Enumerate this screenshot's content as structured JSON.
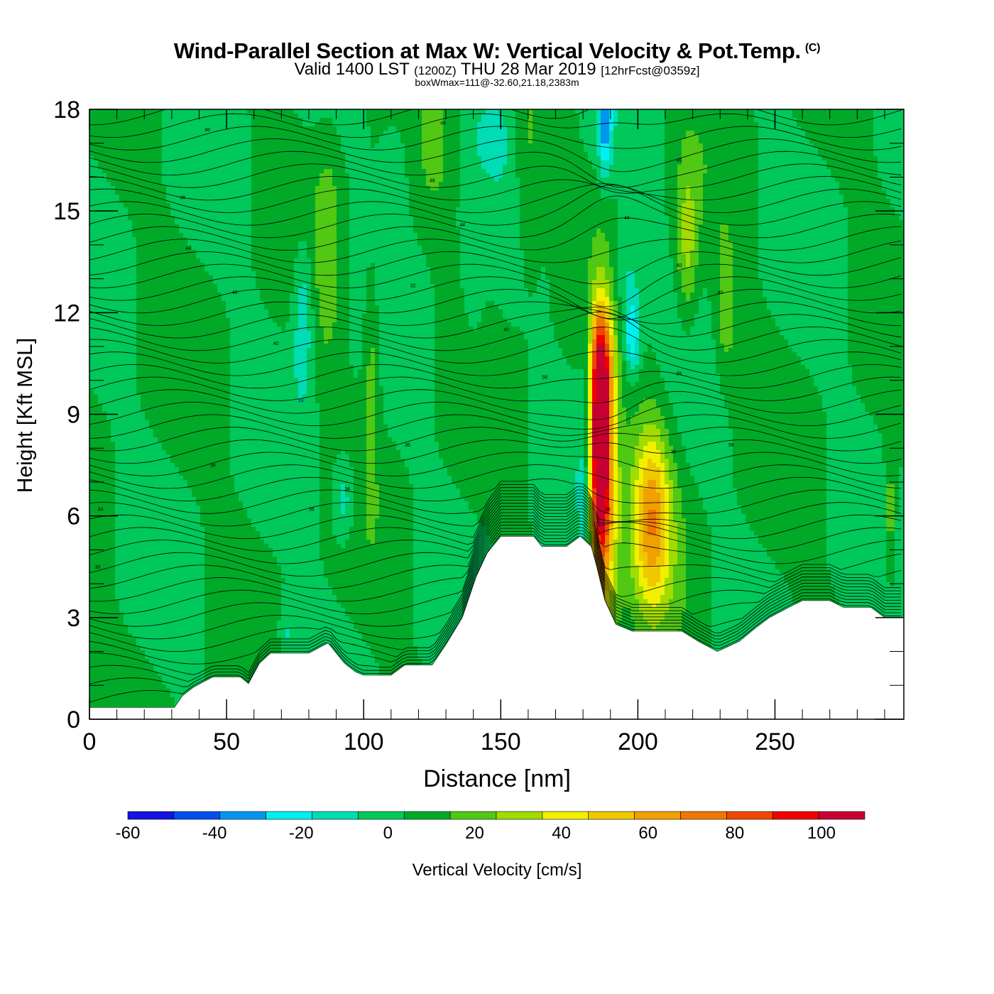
{
  "title": "Wind-Parallel Section at Max W: Vertical Velocity & Pot.Temp.",
  "title_mark": "(C)",
  "subtitle": {
    "valid": "Valid 1400 LST",
    "utc": "(1200Z)",
    "date": "THU 28 Mar 2019",
    "forecast": "[12hrFcst@0359z]"
  },
  "note": "boxWmax=111@-32.60,21.18,2383m",
  "chart_data": {
    "type": "heatmap",
    "xlabel": "Distance [nm]",
    "ylabel": "Height [Kft MSL]",
    "xlim": [
      0,
      297
    ],
    "ylim": [
      0,
      18
    ],
    "x_ticks": [
      0,
      50,
      100,
      150,
      200,
      250
    ],
    "y_ticks": [
      0,
      3,
      6,
      9,
      12,
      15,
      18
    ],
    "x_tick_labels": [
      "0",
      "50",
      "100",
      "150",
      "200",
      "250"
    ],
    "y_tick_labels": [
      "0",
      "3",
      "6",
      "9",
      "12",
      "15",
      "18"
    ],
    "colorbar": {
      "label": "Vertical Velocity [cm/s]",
      "tick_labels": [
        "-60",
        "-40",
        "-20",
        "0",
        "20",
        "40",
        "60",
        "80",
        "100"
      ],
      "ticks": [
        -60,
        -40,
        -20,
        0,
        20,
        40,
        60,
        80,
        100
      ],
      "range": [
        -60,
        110
      ],
      "colors": [
        "#1414e0",
        "#0050f0",
        "#0096f0",
        "#00f0f0",
        "#00dcb4",
        "#00c85a",
        "#00aa28",
        "#50c814",
        "#a0dc00",
        "#f0f000",
        "#f0c800",
        "#f0a000",
        "#f07800",
        "#f04600",
        "#f00000",
        "#c80032"
      ]
    },
    "velocity_features": [
      {
        "x": 186,
        "y": 8.0,
        "wx": 3.5,
        "wy": 3.2,
        "value": 105
      },
      {
        "x": 188,
        "y": 6.5,
        "wx": 5,
        "wy": 4.5,
        "value": 50
      },
      {
        "x": 187,
        "y": 10.5,
        "wx": 4,
        "wy": 1.6,
        "value": 40
      },
      {
        "x": 205,
        "y": 6.0,
        "wx": 6,
        "wy": 2.5,
        "value": 38
      },
      {
        "x": 205,
        "y": 5.8,
        "wx": 10,
        "wy": 3.5,
        "value": 20
      },
      {
        "x": 181,
        "y": 7.0,
        "wx": 2.5,
        "wy": 6,
        "value": -12
      },
      {
        "x": 188,
        "y": 17.5,
        "wx": 2.5,
        "wy": 1.5,
        "value": -35
      },
      {
        "x": 198,
        "y": 11.3,
        "wx": 3,
        "wy": 1.2,
        "value": -30
      },
      {
        "x": 196,
        "y": 13.0,
        "wx": 5,
        "wy": 1.8,
        "value": -14
      },
      {
        "x": 78,
        "y": 12.0,
        "wx": 4,
        "wy": 2.5,
        "value": -22
      },
      {
        "x": 93,
        "y": 6.5,
        "wx": 4,
        "wy": 1.3,
        "value": -20
      },
      {
        "x": 72,
        "y": 2.5,
        "wx": 3,
        "wy": 1,
        "value": -14
      },
      {
        "x": 87,
        "y": 14,
        "wx": 5,
        "wy": 3.5,
        "value": 15
      },
      {
        "x": 103,
        "y": 10.5,
        "wx": 3,
        "wy": 3,
        "value": 18
      },
      {
        "x": 218,
        "y": 14.0,
        "wx": 4,
        "wy": 2.5,
        "value": 25
      },
      {
        "x": 232,
        "y": 12.0,
        "wx": 4,
        "wy": 2,
        "value": 18
      },
      {
        "x": 160,
        "y": 16,
        "wx": 5,
        "wy": 3,
        "value": 15
      },
      {
        "x": 126,
        "y": 17,
        "wx": 4,
        "wy": 1.5,
        "value": 12
      },
      {
        "x": 147,
        "y": 17.3,
        "wx": 6,
        "wy": 1,
        "value": -12
      },
      {
        "x": 112,
        "y": 16.5,
        "wx": 6,
        "wy": 2,
        "value": -10
      },
      {
        "x": 292,
        "y": 6,
        "wx": 2,
        "wy": 2,
        "value": 22
      },
      {
        "x": 140,
        "y": 13,
        "wx": 4,
        "wy": 3,
        "value": -8
      }
    ],
    "terrain": [
      [
        0,
        0.35
      ],
      [
        24,
        0.35
      ],
      [
        31,
        0.35
      ],
      [
        34,
        0.7
      ],
      [
        38,
        0.95
      ],
      [
        45,
        1.25
      ],
      [
        55,
        1.25
      ],
      [
        58,
        1.05
      ],
      [
        62,
        1.65
      ],
      [
        66,
        1.95
      ],
      [
        72,
        1.95
      ],
      [
        80,
        1.95
      ],
      [
        87,
        2.25
      ],
      [
        93,
        1.65
      ],
      [
        97,
        1.4
      ],
      [
        100,
        1.3
      ],
      [
        110,
        1.3
      ],
      [
        115,
        1.6
      ],
      [
        125,
        1.6
      ],
      [
        130,
        2.2
      ],
      [
        136,
        3.0
      ],
      [
        141,
        4.2
      ],
      [
        145,
        4.9
      ],
      [
        150,
        5.4
      ],
      [
        162,
        5.4
      ],
      [
        165,
        5.1
      ],
      [
        174,
        5.1
      ],
      [
        179,
        5.4
      ],
      [
        183,
        5.1
      ],
      [
        185,
        4.5
      ],
      [
        188,
        3.5
      ],
      [
        192,
        2.8
      ],
      [
        198,
        2.6
      ],
      [
        210,
        2.6
      ],
      [
        216,
        2.6
      ],
      [
        222,
        2.3
      ],
      [
        229,
        2.0
      ],
      [
        237,
        2.3
      ],
      [
        243,
        2.7
      ],
      [
        248,
        3.0
      ],
      [
        255,
        3.3
      ],
      [
        260,
        3.5
      ],
      [
        270,
        3.5
      ],
      [
        275,
        3.3
      ],
      [
        285,
        3.3
      ],
      [
        290,
        3.0
      ],
      [
        297,
        3.0
      ]
    ],
    "isentrope_labels": [
      {
        "x": 43,
        "y": 17.4,
        "text": "46"
      },
      {
        "x": 129,
        "y": 17.6,
        "text": "46"
      },
      {
        "x": 125,
        "y": 15.9,
        "text": "46"
      },
      {
        "x": 34,
        "y": 15.4,
        "text": "46"
      },
      {
        "x": 136,
        "y": 14.6,
        "text": "44"
      },
      {
        "x": 36,
        "y": 13.9,
        "text": "44"
      },
      {
        "x": 53,
        "y": 12.6,
        "text": "46"
      },
      {
        "x": 118,
        "y": 12.8,
        "text": "32"
      },
      {
        "x": 68,
        "y": 11.1,
        "text": "40"
      },
      {
        "x": 152,
        "y": 11.5,
        "text": "40"
      },
      {
        "x": 166,
        "y": 10.1,
        "text": "38"
      },
      {
        "x": 77,
        "y": 9.4,
        "text": "38"
      },
      {
        "x": 116,
        "y": 8.1,
        "text": "36"
      },
      {
        "x": 45,
        "y": 7.5,
        "text": "36"
      },
      {
        "x": 94,
        "y": 6.8,
        "text": "34"
      },
      {
        "x": 81,
        "y": 6.2,
        "text": "36"
      },
      {
        "x": 4,
        "y": 6.2,
        "text": "34"
      },
      {
        "x": 3,
        "y": 4.5,
        "text": "30"
      },
      {
        "x": 196,
        "y": 14.8,
        "text": "44"
      },
      {
        "x": 215,
        "y": 16.5,
        "text": "46"
      },
      {
        "x": 215,
        "y": 13.4,
        "text": "40"
      },
      {
        "x": 230,
        "y": 12.6,
        "text": "40"
      },
      {
        "x": 215,
        "y": 10.2,
        "text": "38"
      },
      {
        "x": 213,
        "y": 7.9,
        "text": "36"
      },
      {
        "x": 234,
        "y": 8.1,
        "text": "36"
      },
      {
        "x": 189,
        "y": 6.2,
        "text": "36"
      }
    ]
  }
}
